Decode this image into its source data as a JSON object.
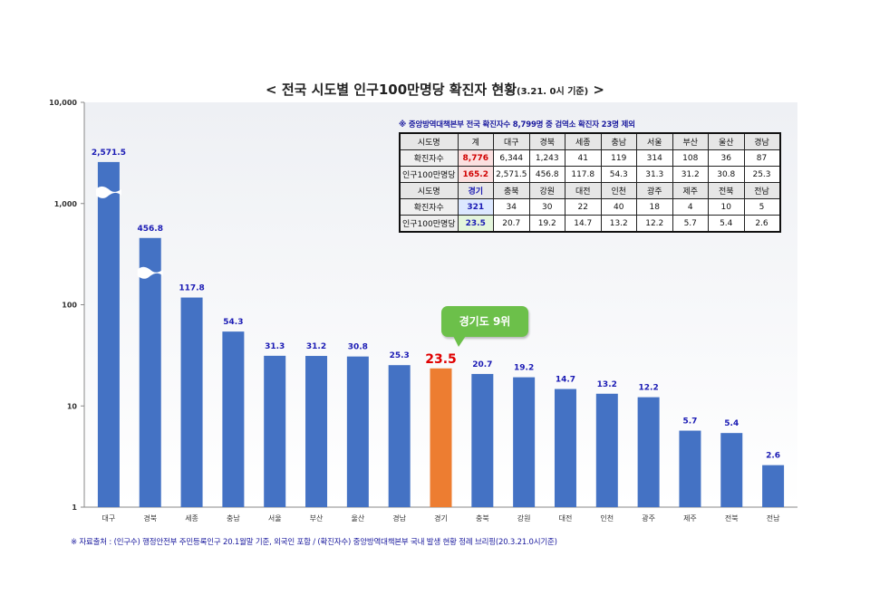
{
  "title": {
    "main": "< 전국 시도별 인구100만명당 확진자 현황",
    "sub": "(3.21. 0시 기준)",
    "end": " >"
  },
  "callout": "경기도 9위",
  "table_note": "※ 중앙방역대책본부 전국 확진자수 8,799명 중 검역소 확진자 23명 제외",
  "source_note": "※ 자료출처 : (인구수) 행정안전부 주민등록인구 20.1월말 기준, 외국인 포함 / (확진자수) 중앙방역대책본부 국내 발생 현황 정례 브리핑(20.3.21.0시기준)",
  "table": {
    "row_labels": {
      "region": "시도명",
      "cases": "확진자수",
      "per_million": "인구100만명당"
    },
    "block1": {
      "regions": [
        "계",
        "대구",
        "경북",
        "세종",
        "충남",
        "서울",
        "부산",
        "울산",
        "경남"
      ],
      "cases": [
        "8,776",
        "6,344",
        "1,243",
        "41",
        "119",
        "314",
        "108",
        "36",
        "87"
      ],
      "per_million": [
        "165.2",
        "2,571.5",
        "456.8",
        "117.8",
        "54.3",
        "31.3",
        "31.2",
        "30.8",
        "25.3"
      ]
    },
    "block2": {
      "regions": [
        "경기",
        "충북",
        "강원",
        "대전",
        "인천",
        "광주",
        "제주",
        "전북",
        "전남"
      ],
      "cases": [
        "321",
        "34",
        "30",
        "22",
        "40",
        "18",
        "4",
        "10",
        "5"
      ],
      "per_million": [
        "23.5",
        "20.7",
        "19.2",
        "14.7",
        "13.2",
        "12.2",
        "5.7",
        "5.4",
        "2.6"
      ]
    }
  },
  "colors": {
    "bar": "#4472c4",
    "bar_highlight": "#ed7d31",
    "value_label": "#1a1ab4",
    "value_label_highlight": "#e00000",
    "plot_bg_top": "#eef0f4",
    "plot_bg_bottom": "#ffffff",
    "callout": "#6cc04a"
  },
  "chart_data": {
    "type": "bar",
    "title": "< 전국 시도별 인구100만명당 확진자 현황(3.21. 0시 기준) >",
    "xlabel": "",
    "ylabel": "",
    "y_scale": "log",
    "ylim": [
      1,
      10000
    ],
    "y_ticks": [
      "1",
      "10",
      "100",
      "1,000",
      "10,000"
    ],
    "y_tick_values": [
      1,
      10,
      100,
      1000,
      10000
    ],
    "grid": false,
    "legend": "none",
    "highlight_category": "경기",
    "broken_bars": [
      "대구",
      "경북"
    ],
    "categories": [
      "대구",
      "경북",
      "세종",
      "충남",
      "서울",
      "부산",
      "울산",
      "경남",
      "경기",
      "충북",
      "강원",
      "대전",
      "인천",
      "광주",
      "제주",
      "전북",
      "전남"
    ],
    "values": [
      2571.5,
      456.8,
      117.8,
      54.3,
      31.3,
      31.2,
      30.8,
      25.3,
      23.5,
      20.7,
      19.2,
      14.7,
      13.2,
      12.2,
      5.7,
      5.4,
      2.6
    ],
    "value_labels": [
      "2,571.5",
      "456.8",
      "117.8",
      "54.3",
      "31.3",
      "31.2",
      "30.8",
      "25.3",
      "23.5",
      "20.7",
      "19.2",
      "14.7",
      "13.2",
      "12.2",
      "5.7",
      "5.4",
      "2.6"
    ]
  }
}
